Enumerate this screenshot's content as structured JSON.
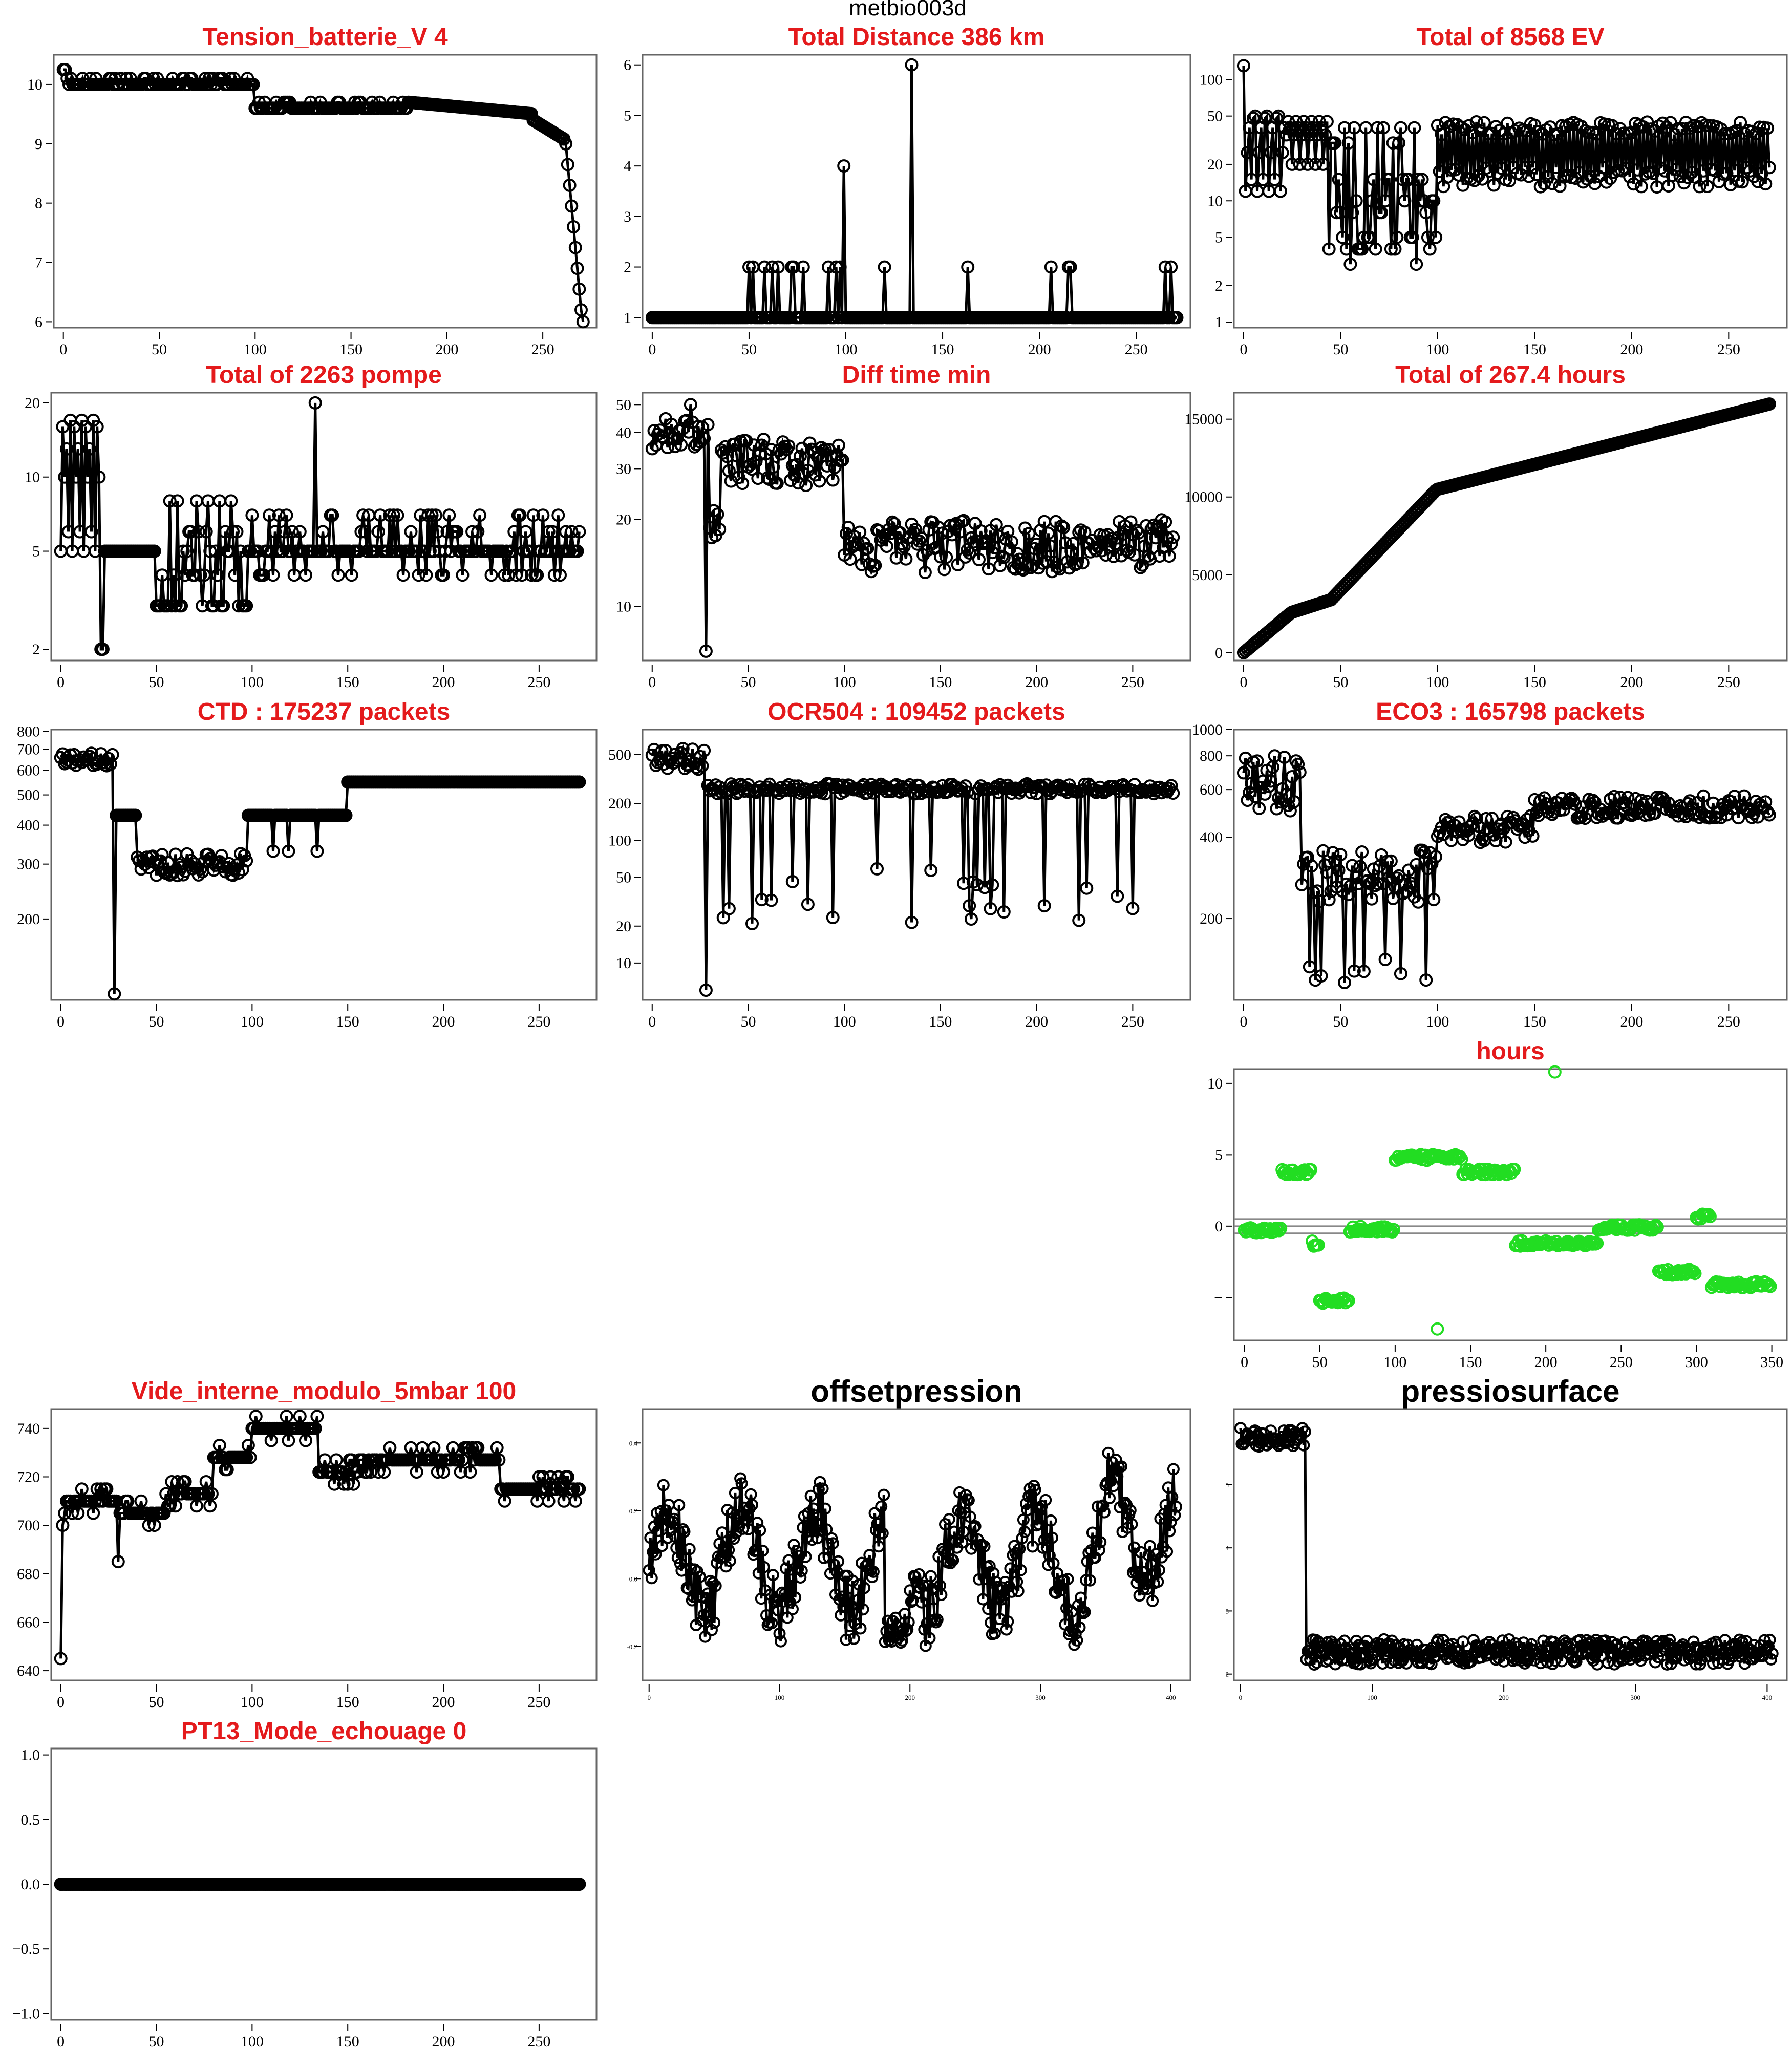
{
  "figure_title": "metbio003d",
  "chart_data": [
    {
      "id": "p1",
      "type": "line",
      "title": "Tension_batterie_V 4",
      "xticks": [
        0,
        50,
        100,
        150,
        200,
        250
      ],
      "yticks": [
        6,
        7,
        8,
        9,
        10
      ],
      "xlim": [
        -5,
        278
      ],
      "ylim": [
        5.9,
        10.5
      ],
      "yscale": "linear",
      "gen": {
        "kind": "batt",
        "n": 272
      }
    },
    {
      "id": "p2",
      "type": "line",
      "title": "Total Distance  386  km",
      "xticks": [
        0,
        50,
        100,
        150,
        200,
        250
      ],
      "yticks": [
        1,
        2,
        3,
        4,
        5,
        6
      ],
      "xlim": [
        -5,
        278
      ],
      "ylim": [
        0.8,
        6.2
      ],
      "yscale": "linear",
      "gen": {
        "kind": "dist",
        "n": 272
      }
    },
    {
      "id": "p3",
      "type": "line",
      "title": "Total of  8568  EV",
      "xticks": [
        0,
        50,
        100,
        150,
        200,
        250
      ],
      "yticks": [
        1,
        2,
        5,
        10,
        20,
        50,
        100
      ],
      "xlim": [
        -5,
        280
      ],
      "ylim": [
        0.9,
        160
      ],
      "yscale": "log",
      "gen": {
        "kind": "ev",
        "n": 272
      }
    },
    {
      "id": "p4",
      "type": "line",
      "title": "Total of  2263  pompe",
      "xticks": [
        0,
        50,
        100,
        150,
        200,
        250
      ],
      "yticks": [
        2,
        5,
        10,
        20
      ],
      "xlim": [
        -5,
        280
      ],
      "ylim": [
        1.8,
        22
      ],
      "yscale": "log",
      "gen": {
        "kind": "pompe",
        "n": 272
      }
    },
    {
      "id": "p5",
      "type": "line",
      "title": "Diff time min",
      "xticks": [
        0,
        50,
        100,
        150,
        200,
        250
      ],
      "yticks": [
        10,
        20,
        30,
        40,
        50
      ],
      "xlim": [
        -5,
        280
      ],
      "ylim": [
        6.5,
        55
      ],
      "yscale": "log",
      "gen": {
        "kind": "diff",
        "n": 272
      }
    },
    {
      "id": "p6",
      "type": "line",
      "title": "Total of  267.4  hours",
      "xticks": [
        0,
        50,
        100,
        150,
        200,
        250
      ],
      "yticks": [
        0,
        5000,
        10000,
        15000
      ],
      "xlim": [
        -5,
        280
      ],
      "ylim": [
        -500,
        16700
      ],
      "yscale": "linear",
      "gen": {
        "kind": "hours",
        "n": 272
      }
    },
    {
      "id": "p7",
      "type": "line",
      "title": "CTD  : 175237  packets",
      "xticks": [
        0,
        50,
        100,
        150,
        200,
        250
      ],
      "yticks": [
        200,
        300,
        400,
        500,
        600,
        700,
        800
      ],
      "xlim": [
        -5,
        280
      ],
      "ylim": [
        110,
        810
      ],
      "yscale": "log",
      "gen": {
        "kind": "ctd",
        "n": 272
      }
    },
    {
      "id": "p8",
      "type": "line",
      "title": "OCR504  : 109452  packets",
      "xticks": [
        0,
        50,
        100,
        150,
        200,
        250
      ],
      "yticks": [
        10,
        20,
        50,
        100,
        200,
        500
      ],
      "xlim": [
        -5,
        280
      ],
      "ylim": [
        5,
        800
      ],
      "yscale": "log",
      "gen": {
        "kind": "ocr",
        "n": 272
      }
    },
    {
      "id": "p9",
      "type": "line",
      "title": "ECO3  : 165798  packets",
      "xticks": [
        0,
        50,
        100,
        150,
        200,
        250
      ],
      "yticks": [
        200,
        400,
        600,
        800,
        1000
      ],
      "xlim": [
        -5,
        280
      ],
      "ylim": [
        100,
        1000
      ],
      "yscale": "log",
      "gen": {
        "kind": "eco",
        "n": 272
      }
    },
    {
      "id": "p10",
      "type": "scatter",
      "title": "hours",
      "xticks": [
        0,
        50,
        100,
        150,
        200,
        250,
        300,
        350
      ],
      "yticks": [
        -5,
        0,
        5,
        10
      ],
      "yticklabels": [
        "−",
        "0",
        "5",
        "10"
      ],
      "xlim": [
        -7,
        360
      ],
      "ylim": [
        -8,
        11
      ],
      "yscale": "linear",
      "hlines": [
        0.5,
        0,
        -0.5
      ],
      "point_color": "#22dd22",
      "gen": {
        "kind": "hrs",
        "n": 350
      }
    },
    {
      "id": "p11",
      "type": "line",
      "title": "Vide_interne_modulo_5mbar 100",
      "xticks": [
        0,
        50,
        100,
        150,
        200,
        250
      ],
      "yticks": [
        640,
        660,
        680,
        700,
        720,
        740
      ],
      "xlim": [
        -5,
        280
      ],
      "ylim": [
        636,
        748
      ],
      "yscale": "linear",
      "gen": {
        "kind": "vide",
        "n": 272
      }
    },
    {
      "id": "p12",
      "type": "line",
      "title": "offsetpression",
      "xticks": [
        0,
        100,
        200,
        300,
        400
      ],
      "yticks": [
        -0.2,
        0,
        0.2,
        0.4
      ],
      "yticklabels": [
        "-0.2",
        "0.0",
        "0.2",
        "0.4"
      ],
      "xlim": [
        -5,
        415
      ],
      "ylim": [
        -0.3,
        0.5
      ],
      "yscale": "linear",
      "small_ticks": true,
      "gen": {
        "kind": "offset",
        "n": 405
      }
    },
    {
      "id": "p13",
      "type": "line",
      "title": "pressiosurface",
      "xticks": [
        0,
        100,
        200,
        300,
        400
      ],
      "yticks": [
        2,
        3,
        4,
        5
      ],
      "xlim": [
        -5,
        415
      ],
      "ylim": [
        1.9,
        6.2
      ],
      "yscale": "linear",
      "small_ticks": true,
      "gen": {
        "kind": "press",
        "n": 405
      }
    },
    {
      "id": "p14",
      "type": "line",
      "title": "PT13_Mode_echouage  0",
      "xticks": [
        0,
        50,
        100,
        150,
        200,
        250
      ],
      "yticks": [
        -1,
        -0.5,
        0,
        0.5,
        1
      ],
      "yticklabels": [
        "−1.0",
        "−0.5",
        "0.0",
        "0.5",
        "1.0"
      ],
      "xlim": [
        -5,
        280
      ],
      "ylim": [
        -1.05,
        1.05
      ],
      "yscale": "linear",
      "gen": {
        "kind": "zero",
        "n": 272
      }
    }
  ]
}
